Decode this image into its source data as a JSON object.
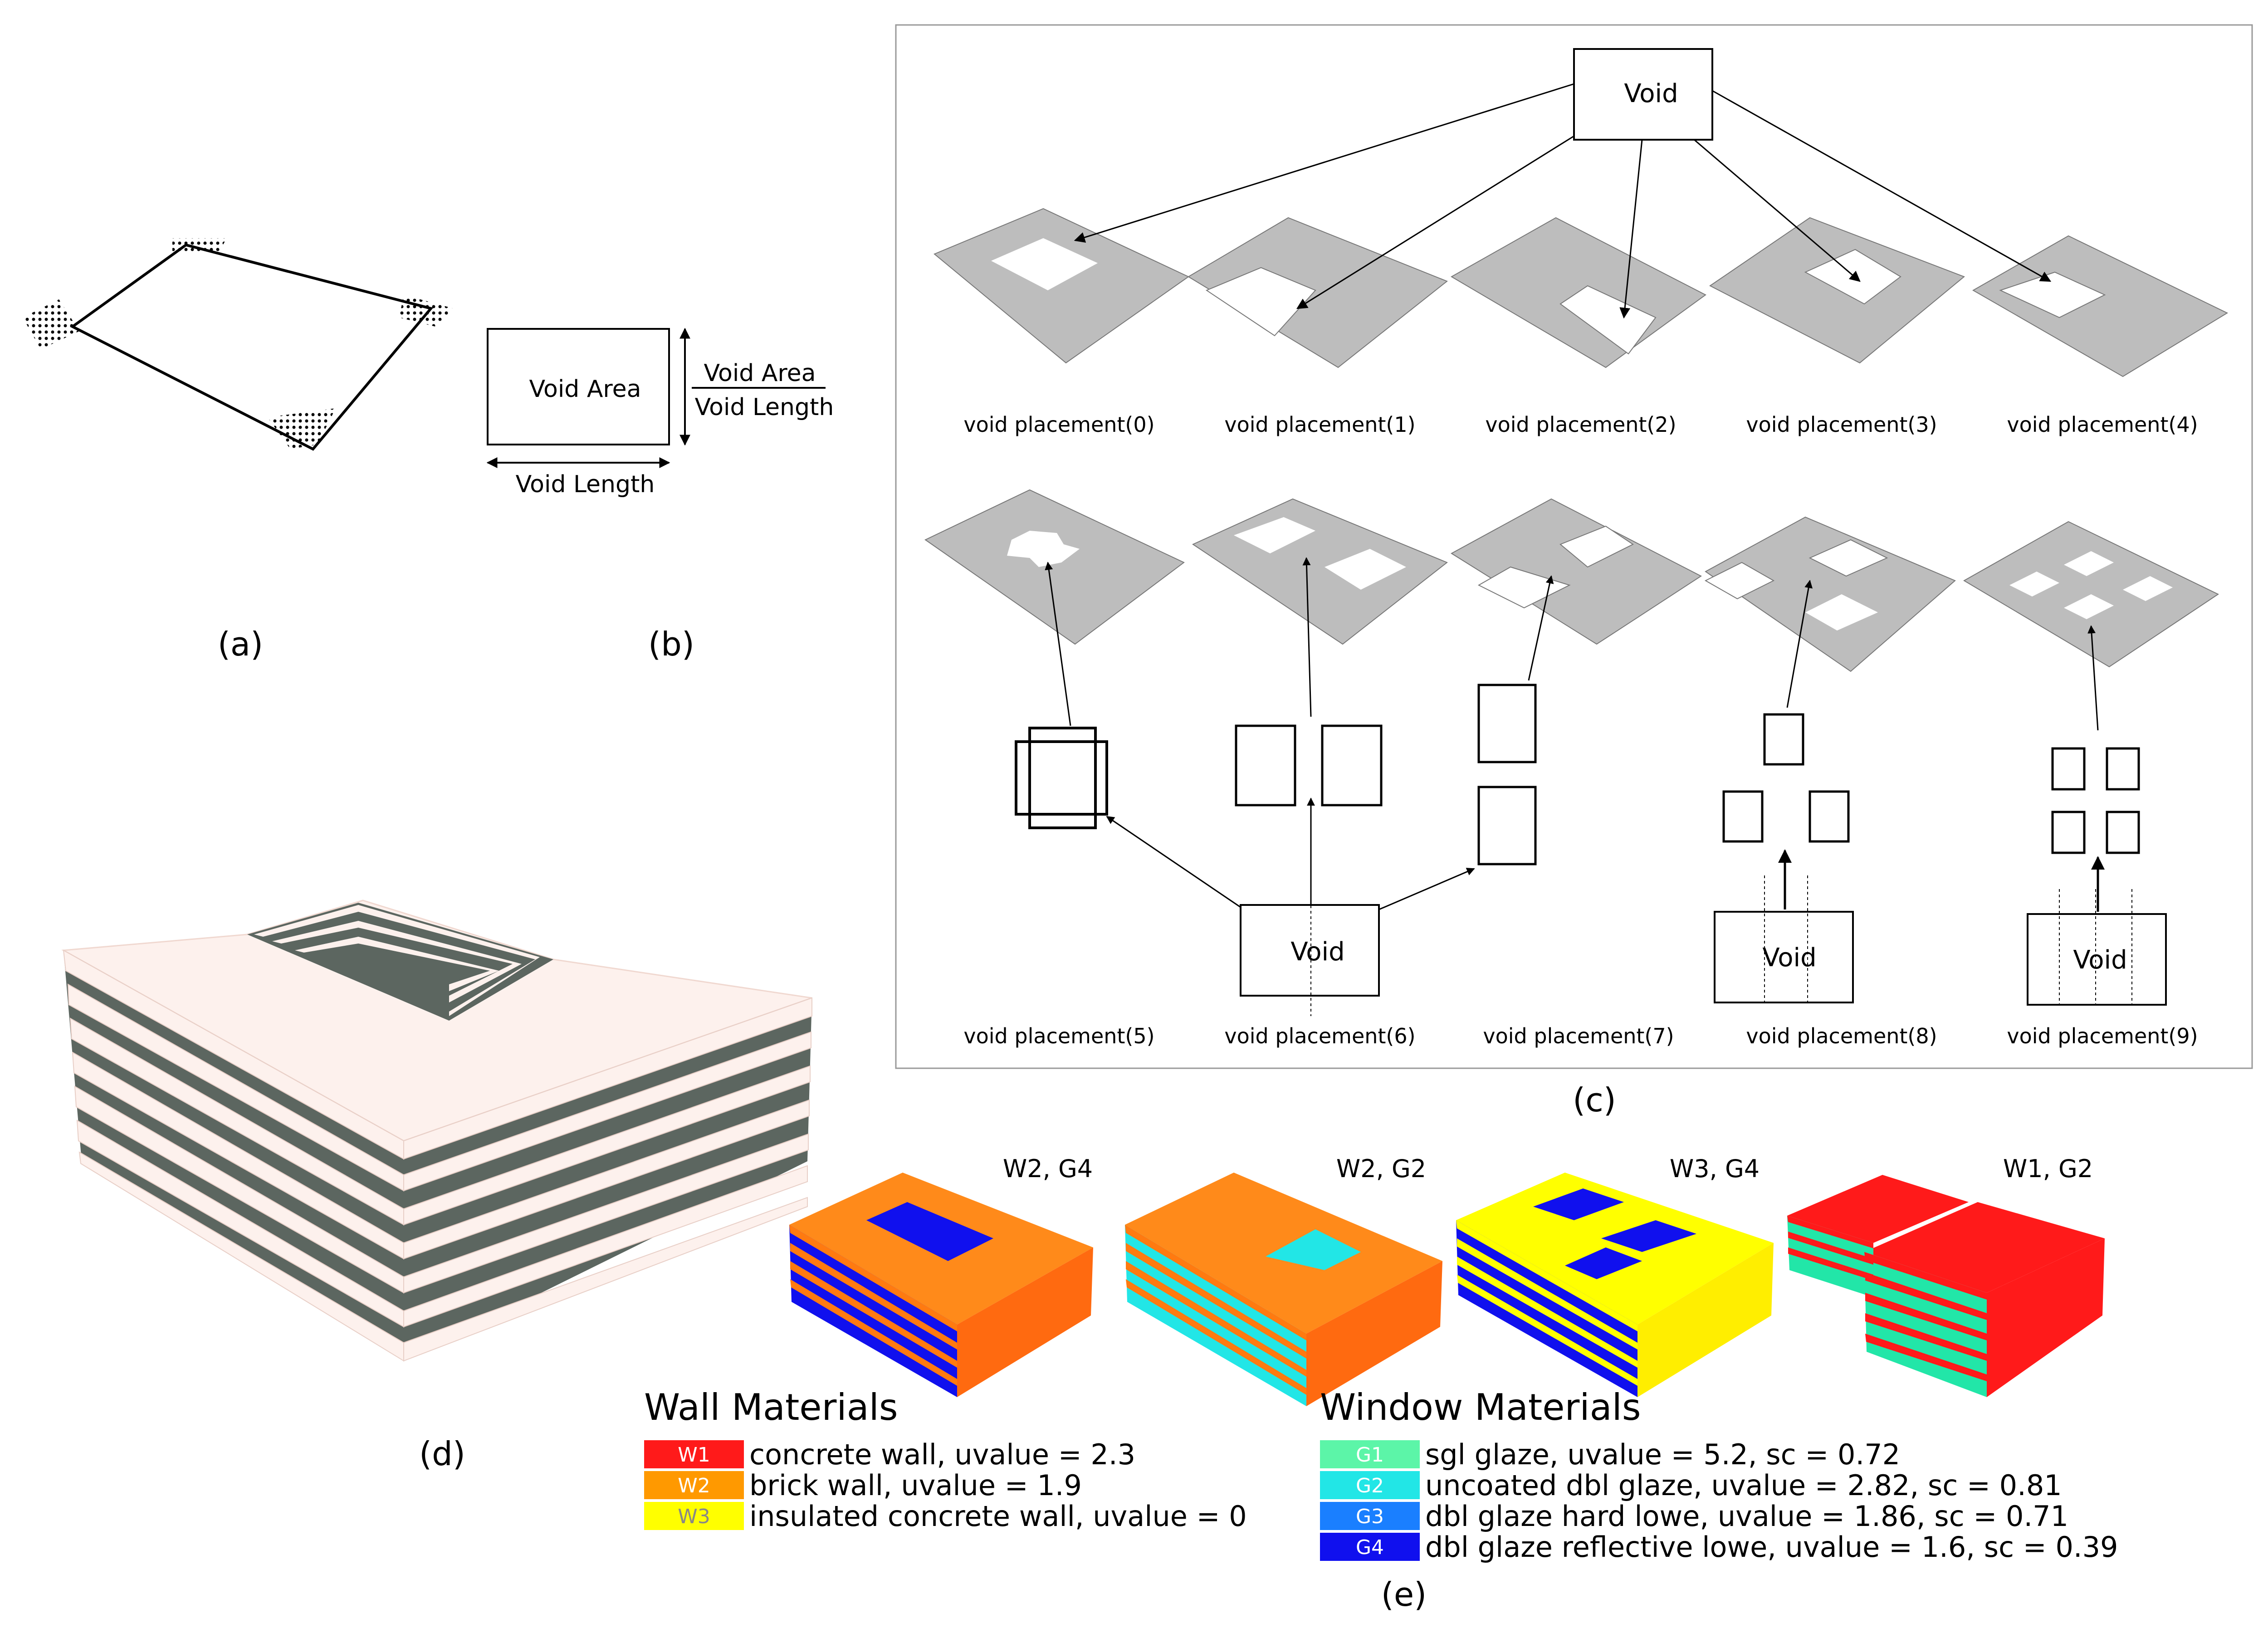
{
  "panel_a": {
    "caption": "(a)"
  },
  "panel_b": {
    "caption": "(b)",
    "box_label": "Void Area",
    "fraction_top": "Void Area",
    "fraction_bottom": "Void Length",
    "length_label": "Void Length"
  },
  "panel_c": {
    "caption": "(c)",
    "top_void_label": "Void",
    "bottom_void_label": "Void",
    "void8_label": "Void",
    "void9_label": "Void",
    "placements": [
      "void placement(0)",
      "void placement(1)",
      "void placement(2)",
      "void placement(3)",
      "void placement(4)",
      "void placement(5)",
      "void placement(6)",
      "void placement(7)",
      "void placement(8)",
      "void placement(9)"
    ]
  },
  "panel_d": {
    "caption": "(d)"
  },
  "panel_e": {
    "caption": "(e)",
    "buildings": [
      "W2, G4",
      "W2, G2",
      "W3, G4",
      "W1, G2"
    ],
    "wall_title": "Wall Materials",
    "wall_materials": [
      {
        "code": "W1",
        "text": "concrete wall, uvalue = 2.3",
        "color": "#ff1a1a"
      },
      {
        "code": "W2",
        "text": "brick wall, uvalue = 1.9",
        "color": "#ff9900"
      },
      {
        "code": "W3",
        "text": "insulated concrete wall, uvalue = 0",
        "color": "#ffff00"
      }
    ],
    "window_title": "Window Materials",
    "window_materials": [
      {
        "code": "G1",
        "text": "sgl glaze, uvalue = 5.2, sc = 0.72",
        "color": "#5cf5a8"
      },
      {
        "code": "G2",
        "text": "uncoated dbl glaze, uvalue = 2.82, sc = 0.81",
        "color": "#22e6e6"
      },
      {
        "code": "G3",
        "text": "dbl glaze hard lowe, uvalue = 1.86, sc = 0.71",
        "color": "#1a7fff"
      },
      {
        "code": "G4",
        "text": "dbl glaze reflective lowe, uvalue = 1.6, sc = 0.39",
        "color": "#1010ee"
      }
    ]
  }
}
